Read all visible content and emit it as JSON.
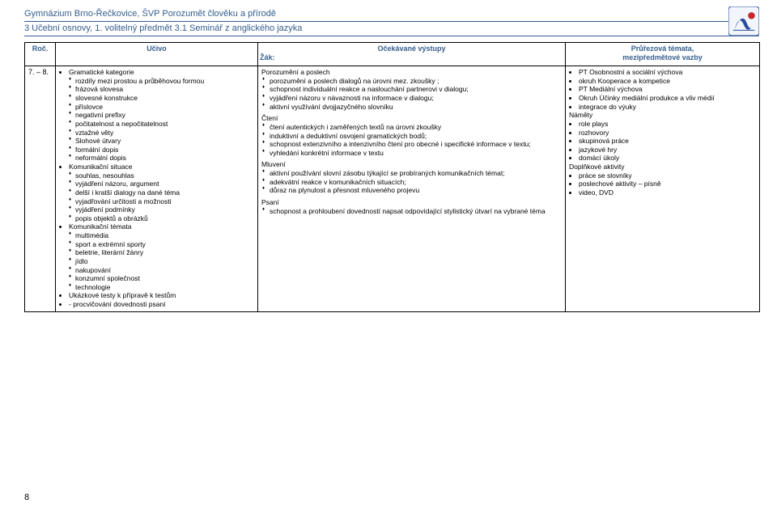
{
  "header": {
    "line1": "Gymnázium Brno-Řečkovice, ŠVP Porozumět člověku a přírodě",
    "line2": "3 Učební osnovy, 1. volitelný předmět  3.1 Seminář z anglického jazyka"
  },
  "columns": {
    "roc": "Roč.",
    "ucivo": "Učivo",
    "vystupy_top": "Očekávané výstupy",
    "vystupy_sub": "Žák:",
    "prurezova_top": "Průřezová témata,",
    "prurezova_sub": "mezipředmětové vazby"
  },
  "roc_value": "7. – 8.",
  "ucivo": [
    {
      "t": "Gramatické kategorie",
      "sub": [
        "rozdíly mezi prostou a průběhovou formou",
        "frázová slovesa",
        "slovesné konstrukce",
        "příslovce",
        "negativní prefixy",
        "počitatelnost a nepočitatelnost",
        "vztažné věty",
        "Slohové útvary",
        "formální dopis",
        "neformální dopis"
      ]
    },
    {
      "t": "Komunikační situace",
      "sub": [
        "souhlas, nesouhlas",
        "vyjádření názoru, argument",
        "delší i kratší dialogy na dané téma",
        "vyjadřování určitosti a možnosti",
        "vyjádření podmínky",
        "popis objektů a obrázků"
      ]
    },
    {
      "t": "Komunikační témata",
      "sub": [
        "multimédia",
        "sport a extrémní sporty",
        "beletrie, literární žánry",
        "jídlo",
        "nakupování",
        "konzumní společnost",
        "technologie"
      ]
    },
    {
      "t": "Ukázkové testy k přípravě k testům",
      "sub": []
    },
    {
      "t": "- procvičování dovednosti  psaní",
      "sub": []
    }
  ],
  "vystupy": [
    {
      "h": "Porozumění a poslech",
      "items": [
        "porozumění a poslech dialogů na úrovni mez. zkoušky ;",
        "schopnost individuální reakce a naslouchání partnerovi v dialogu;",
        "vyjádření názoru v návaznosti na informace v dialogu;",
        "aktivní využívání dvojjazyčného slovníku"
      ]
    },
    {
      "h": "Čtení",
      "items": [
        "čtení autentických i zaměřených textů na úrovni zkoušky",
        "induktivní a deduktivní osvojení gramatických bodů;",
        "schopnost extenzivního a intenzivního čtení pro obecné i specifické informace v textu;",
        "vyhledání konkrétní informace v textu"
      ]
    },
    {
      "h": "Mluvení",
      "items": [
        "aktivní používání slovní zásobu týkající se probíraných komunikačních témat;",
        "adekvátní reakce v komunikačních situacích;",
        "důraz na plynulost a přesnost mluveného projevu"
      ]
    },
    {
      "h": "Psaní",
      "items": [
        "schopnost a prohloubení dovedností napsat odpovídající stylistický útvarí na vybrané téma"
      ]
    }
  ],
  "cross": {
    "disc": [
      "PT Osobnostní a sociální výchova",
      "okruh Kooperace a kompetice",
      "PT Mediální výchova",
      "Okruh Účinky mediální produkce a vliv médií",
      "integrace do výuky"
    ],
    "namety_h": "Náměty",
    "namety": [
      "role plays",
      "rozhovory",
      "skupinová práce",
      "jazykové hry",
      "domácí úkoly"
    ],
    "dopln_h": "Doplňkové aktivity",
    "dopln": [
      "práce se slovníky",
      "poslechové aktivity – písně",
      "video, DVD"
    ]
  },
  "page_num": "8",
  "colors": {
    "header_blue": "#355e8e",
    "logo_blue": "#2b4a9b",
    "logo_red": "#c62828"
  }
}
